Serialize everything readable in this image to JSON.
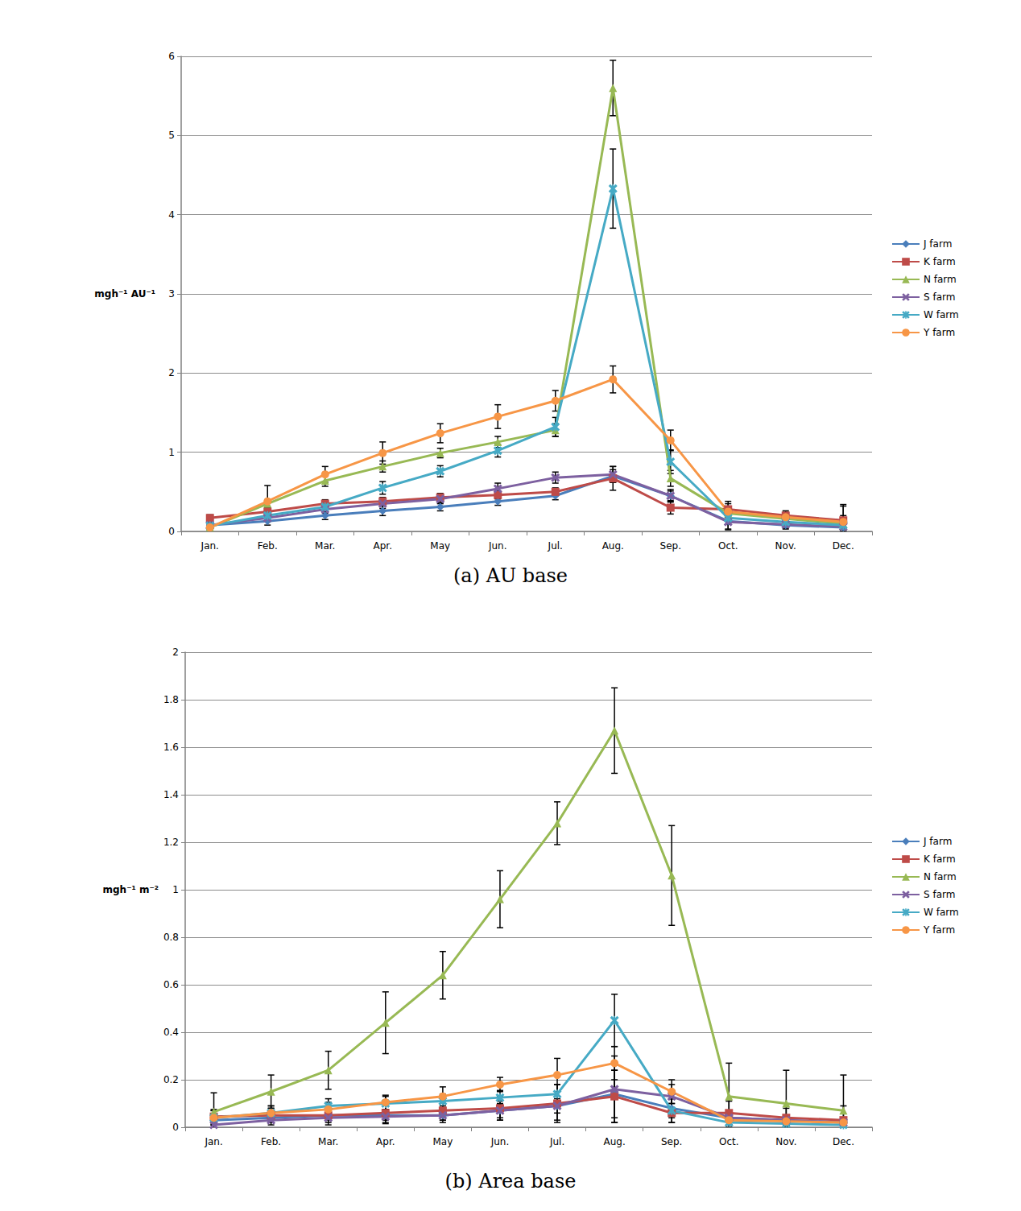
{
  "chart_data": [
    {
      "type": "line",
      "title": "(a) AU base",
      "y_label": "mgh⁻¹ AU⁻¹",
      "categories": [
        "Jan.",
        "Feb.",
        "Mar.",
        "Apr.",
        "May",
        "Jun.",
        "Jul.",
        "Aug.",
        "Sep.",
        "Oct.",
        "Nov.",
        "Dec."
      ],
      "ylim": [
        0,
        6
      ],
      "yticks": [
        0,
        1,
        2,
        3,
        4,
        5,
        6
      ],
      "grid": true,
      "legend": "right",
      "series": [
        {
          "name": "J farm",
          "color": "#4a7ebb",
          "marker": "diamond",
          "values": [
            0.08,
            0.13,
            0.2,
            0.26,
            0.31,
            0.38,
            0.45,
            0.7,
            0.45,
            0.13,
            0.08,
            0.05
          ],
          "errors": [
            0.04,
            0.05,
            0.05,
            0.06,
            0.05,
            0.05,
            0.05,
            0.08,
            0.06,
            0.1,
            0.05,
            0.05
          ]
        },
        {
          "name": "K farm",
          "color": "#be4b48",
          "marker": "square",
          "values": [
            0.17,
            0.25,
            0.35,
            0.38,
            0.43,
            0.46,
            0.5,
            0.67,
            0.3,
            0.28,
            0.2,
            0.14
          ],
          "errors": [
            0.04,
            0.05,
            0.05,
            0.05,
            0.05,
            0.05,
            0.05,
            0.15,
            0.08,
            0.1,
            0.06,
            0.2
          ]
        },
        {
          "name": "N farm",
          "color": "#98b954",
          "marker": "triangle",
          "values": [
            0.05,
            0.35,
            0.64,
            0.82,
            0.99,
            1.13,
            1.28,
            5.6,
            0.67,
            0.23,
            0.16,
            0.1
          ],
          "errors": [
            0.03,
            0.05,
            0.07,
            0.07,
            0.06,
            0.07,
            0.08,
            0.35,
            0.1,
            0.08,
            0.06,
            0.1
          ]
        },
        {
          "name": "S farm",
          "color": "#7d60a0",
          "marker": "x",
          "values": [
            0.08,
            0.17,
            0.28,
            0.35,
            0.41,
            0.54,
            0.68,
            0.72,
            0.45,
            0.12,
            0.09,
            0.06
          ],
          "errors": [
            0.04,
            0.05,
            0.05,
            0.06,
            0.06,
            0.07,
            0.07,
            0.1,
            0.08,
            0.1,
            0.05,
            0.08
          ]
        },
        {
          "name": "W farm",
          "color": "#46aac5",
          "marker": "star",
          "values": [
            0.07,
            0.2,
            0.31,
            0.55,
            0.76,
            1.02,
            1.32,
            4.33,
            0.88,
            0.17,
            0.12,
            0.08
          ],
          "errors": [
            0.04,
            0.05,
            0.06,
            0.08,
            0.07,
            0.08,
            0.12,
            0.5,
            0.15,
            0.08,
            0.06,
            0.08
          ]
        },
        {
          "name": "Y farm",
          "color": "#f79646",
          "marker": "circle",
          "values": [
            0.05,
            0.38,
            0.72,
            0.99,
            1.24,
            1.45,
            1.65,
            1.92,
            1.15,
            0.25,
            0.18,
            0.12
          ],
          "errors": [
            0.04,
            0.2,
            0.1,
            0.14,
            0.12,
            0.15,
            0.13,
            0.17,
            0.13,
            0.1,
            0.06,
            0.2
          ]
        }
      ]
    },
    {
      "type": "line",
      "title": "(b) Area base",
      "y_label": "mgh⁻¹ m⁻²",
      "categories": [
        "Jan.",
        "Feb.",
        "Mar.",
        "Apr.",
        "May",
        "Jun.",
        "Jul.",
        "Aug.",
        "Sep.",
        "Oct.",
        "Nov.",
        "Dec."
      ],
      "ylim": [
        0,
        2
      ],
      "yticks": [
        0,
        0.2,
        0.4,
        0.6,
        0.8,
        1,
        1.2,
        1.4,
        1.6,
        1.8,
        2
      ],
      "grid": true,
      "legend": "right",
      "series": [
        {
          "name": "J farm",
          "color": "#4a7ebb",
          "marker": "diamond",
          "values": [
            0.03,
            0.04,
            0.05,
            0.05,
            0.05,
            0.07,
            0.09,
            0.14,
            0.08,
            0.04,
            0.03,
            0.02
          ],
          "errors": [
            0.02,
            0.02,
            0.02,
            0.02,
            0.02,
            0.03,
            0.03,
            0.1,
            0.04,
            0.03,
            0.02,
            0.02
          ]
        },
        {
          "name": "K farm",
          "color": "#be4b48",
          "marker": "square",
          "values": [
            0.045,
            0.05,
            0.05,
            0.06,
            0.07,
            0.08,
            0.1,
            0.13,
            0.06,
            0.06,
            0.04,
            0.03
          ],
          "errors": [
            0.03,
            0.03,
            0.03,
            0.04,
            0.04,
            0.05,
            0.08,
            0.11,
            0.04,
            0.05,
            0.04,
            0.06
          ]
        },
        {
          "name": "N farm",
          "color": "#98b954",
          "marker": "triangle",
          "values": [
            0.065,
            0.15,
            0.24,
            0.44,
            0.64,
            0.96,
            1.28,
            1.67,
            1.06,
            0.13,
            0.1,
            0.07
          ],
          "errors": [
            0.08,
            0.07,
            0.08,
            0.13,
            0.1,
            0.12,
            0.09,
            0.18,
            0.21,
            0.14,
            0.14,
            0.15
          ]
        },
        {
          "name": "S farm",
          "color": "#7d60a0",
          "marker": "x",
          "values": [
            0.01,
            0.03,
            0.04,
            0.045,
            0.05,
            0.07,
            0.09,
            0.16,
            0.13,
            0.04,
            0.03,
            0.02
          ],
          "errors": [
            0.02,
            0.02,
            0.03,
            0.03,
            0.03,
            0.04,
            0.06,
            0.14,
            0.05,
            0.03,
            0.02,
            0.02
          ]
        },
        {
          "name": "W farm",
          "color": "#46aac5",
          "marker": "star",
          "values": [
            0.04,
            0.06,
            0.09,
            0.1,
            0.11,
            0.125,
            0.14,
            0.45,
            0.07,
            0.02,
            0.015,
            0.01
          ],
          "errors": [
            0.03,
            0.03,
            0.03,
            0.03,
            0.03,
            0.03,
            0.04,
            0.11,
            0.05,
            0.02,
            0.02,
            0.02
          ]
        },
        {
          "name": "Y farm",
          "color": "#f79646",
          "marker": "circle",
          "values": [
            0.04,
            0.06,
            0.075,
            0.105,
            0.13,
            0.18,
            0.22,
            0.27,
            0.15,
            0.03,
            0.025,
            0.02
          ],
          "errors": [
            0.03,
            0.03,
            0.03,
            0.03,
            0.04,
            0.03,
            0.07,
            0.07,
            0.05,
            0.02,
            0.02,
            0.02
          ]
        }
      ]
    }
  ]
}
